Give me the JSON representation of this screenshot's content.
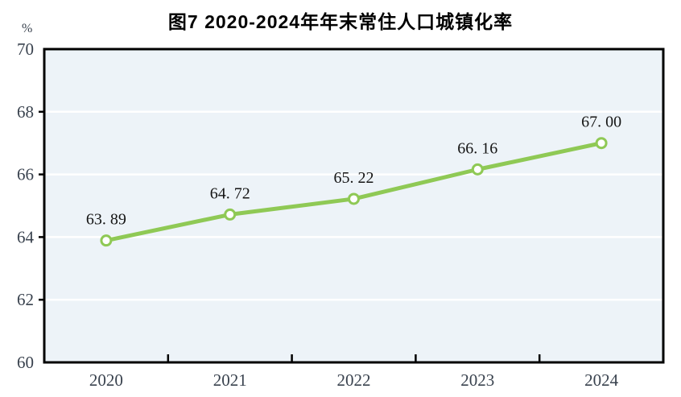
{
  "title": "图7  2020-2024年年末常住人口城镇化率",
  "unit_label": "%",
  "colors": {
    "line": "#8fc955",
    "marker_fill": "#ffffff",
    "plot_bg": "#edf3f8",
    "grid": "#ffffff",
    "axis": "#000000",
    "tick_label": "#39424e",
    "data_label": "#151515",
    "page_bg": "#ffffff"
  },
  "chart_data": {
    "type": "line",
    "title": "图7  2020-2024年年末常住人口城镇化率",
    "categories": [
      "2020",
      "2021",
      "2022",
      "2023",
      "2024"
    ],
    "series": [
      {
        "name": "年末常住人口城镇化率",
        "values": [
          63.89,
          64.72,
          65.22,
          66.16,
          67.0
        ],
        "labels": [
          "63. 89",
          "64. 72",
          "65. 22",
          "66. 16",
          "67. 00"
        ]
      }
    ],
    "xlabel": "",
    "ylabel": "%",
    "ylim": [
      60,
      70
    ],
    "yticks": [
      60,
      62,
      64,
      66,
      68,
      70
    ],
    "grid": "horizontal-white-lines",
    "legend_position": "none",
    "marker": "open-circle"
  }
}
